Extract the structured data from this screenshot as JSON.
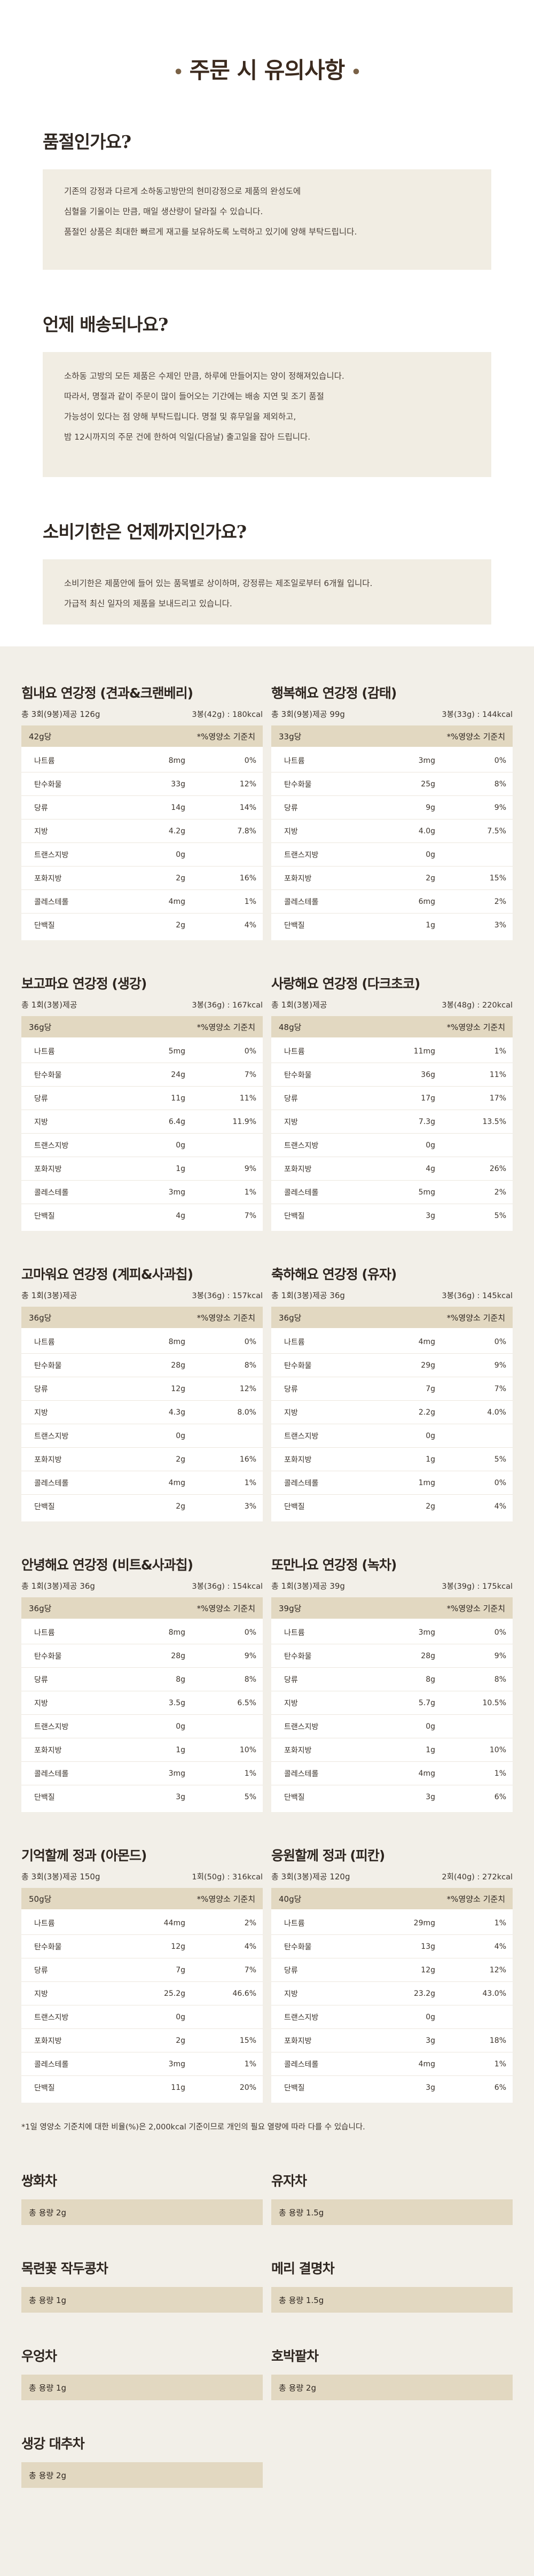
{
  "header": {
    "title": "주문 시 유의사항",
    "dot_left": "•",
    "dot_right": "•"
  },
  "faqs": [
    {
      "question": "품절인가요?",
      "lines": [
        "기존의 강정과 다르게 소하동고방만의 현미강정으로 제품의 완성도에",
        "심혈을 기울이는 만큼, 매일 생산량이 달라질 수 있습니다.",
        "품절인 상품은 최대한 빠르게 재고를 보유하도록 노력하고 있기에 양해 부탁드립니다."
      ]
    },
    {
      "question": "언제 배송되나요?",
      "lines": [
        "소하동 고방의 모든 제품은 수제인 만큼, 하루에 만들어지는 양이 정해져있습니다.",
        "따라서, 명절과 같이 주문이 많이 들어오는 기간에는 배송 지연 및 조기 품절",
        "가능성이 있다는 점 양해 부탁드립니다. 명절 및 휴무일을 제외하고,",
        "밤 12시까지의 주문 건에 한하여 익일(다음날) 출고일을 잡아 드립니다."
      ]
    },
    {
      "question": "소비기한은 언제까지인가요?",
      "lines": [
        "소비기한은 제품안에 들어 있는 품목별로 상이하며, 강정류는 제조일로부터 6개월 입니다.",
        "가급적 최신 일자의 제품을 보내드리고 있습니다."
      ]
    }
  ],
  "nutrition": {
    "unit_header": "*%영양소 기준치",
    "cards": [
      {
        "name": "힘내요 연강정 (견과&크랜베리)",
        "meta_left": "총 3회(9봉)제공 126g",
        "meta_right": "3봉(42g) : 180kcal",
        "per": "42g당",
        "rows": [
          {
            "n": "나트륨",
            "a": "8mg",
            "p": "0%"
          },
          {
            "n": "탄수화물",
            "a": "33g",
            "p": "12%"
          },
          {
            "n": "당류",
            "a": "14g",
            "p": "14%"
          },
          {
            "n": "지방",
            "a": "4.2g",
            "p": "7.8%"
          },
          {
            "n": "트랜스지방",
            "a": "0g",
            "p": ""
          },
          {
            "n": "포화지방",
            "a": "2g",
            "p": "16%"
          },
          {
            "n": "콜레스테롤",
            "a": "4mg",
            "p": "1%"
          },
          {
            "n": "단백질",
            "a": "2g",
            "p": "4%"
          }
        ]
      },
      {
        "name": "행복해요 연강정 (감태)",
        "meta_left": "총 3회(9봉)제공 99g",
        "meta_right": "3봉(33g) : 144kcal",
        "per": "33g당",
        "rows": [
          {
            "n": "나트륨",
            "a": "3mg",
            "p": "0%"
          },
          {
            "n": "탄수화물",
            "a": "25g",
            "p": "8%"
          },
          {
            "n": "당류",
            "a": "9g",
            "p": "9%"
          },
          {
            "n": "지방",
            "a": "4.0g",
            "p": "7.5%"
          },
          {
            "n": "트랜스지방",
            "a": "0g",
            "p": ""
          },
          {
            "n": "포화지방",
            "a": "2g",
            "p": "15%"
          },
          {
            "n": "콜레스테롤",
            "a": "6mg",
            "p": "2%"
          },
          {
            "n": "단백질",
            "a": "1g",
            "p": "3%"
          }
        ]
      },
      {
        "name": "보고파요 연강정 (생강)",
        "meta_left": "총 1회(3봉)제공",
        "meta_right": "3봉(36g) : 167kcal",
        "per": "36g당",
        "rows": [
          {
            "n": "나트륨",
            "a": "5mg",
            "p": "0%"
          },
          {
            "n": "탄수화물",
            "a": "24g",
            "p": "7%"
          },
          {
            "n": "당류",
            "a": "11g",
            "p": "11%"
          },
          {
            "n": "지방",
            "a": "6.4g",
            "p": "11.9%"
          },
          {
            "n": "트랜스지방",
            "a": "0g",
            "p": ""
          },
          {
            "n": "포화지방",
            "a": "1g",
            "p": "9%"
          },
          {
            "n": "콜레스테롤",
            "a": "3mg",
            "p": "1%"
          },
          {
            "n": "단백질",
            "a": "4g",
            "p": "7%"
          }
        ]
      },
      {
        "name": "사랑해요 연강정 (다크초코)",
        "meta_left": "총 1회(3봉)제공",
        "meta_right": "3봉(48g) : 220kcal",
        "per": "48g당",
        "rows": [
          {
            "n": "나트륨",
            "a": "11mg",
            "p": "1%"
          },
          {
            "n": "탄수화물",
            "a": "36g",
            "p": "11%"
          },
          {
            "n": "당류",
            "a": "17g",
            "p": "17%"
          },
          {
            "n": "지방",
            "a": "7.3g",
            "p": "13.5%"
          },
          {
            "n": "트랜스지방",
            "a": "0g",
            "p": ""
          },
          {
            "n": "포화지방",
            "a": "4g",
            "p": "26%"
          },
          {
            "n": "콜레스테롤",
            "a": "5mg",
            "p": "2%"
          },
          {
            "n": "단백질",
            "a": "3g",
            "p": "5%"
          }
        ]
      },
      {
        "name": "고마워요 연강정 (계피&사과칩)",
        "meta_left": "총 1회(3봉)제공",
        "meta_right": "3봉(36g) : 157kcal",
        "per": "36g당",
        "rows": [
          {
            "n": "나트륨",
            "a": "8mg",
            "p": "0%"
          },
          {
            "n": "탄수화물",
            "a": "28g",
            "p": "8%"
          },
          {
            "n": "당류",
            "a": "12g",
            "p": "12%"
          },
          {
            "n": "지방",
            "a": "4.3g",
            "p": "8.0%"
          },
          {
            "n": "트랜스지방",
            "a": "0g",
            "p": ""
          },
          {
            "n": "포화지방",
            "a": "2g",
            "p": "16%"
          },
          {
            "n": "콜레스테롤",
            "a": "4mg",
            "p": "1%"
          },
          {
            "n": "단백질",
            "a": "2g",
            "p": "3%"
          }
        ]
      },
      {
        "name": "축하해요 연강정 (유자)",
        "meta_left": "총 1회(3봉)제공 36g",
        "meta_right": "3봉(36g) : 145kcal",
        "per": "36g당",
        "rows": [
          {
            "n": "나트륨",
            "a": "4mg",
            "p": "0%"
          },
          {
            "n": "탄수화물",
            "a": "29g",
            "p": "9%"
          },
          {
            "n": "당류",
            "a": "7g",
            "p": "7%"
          },
          {
            "n": "지방",
            "a": "2.2g",
            "p": "4.0%"
          },
          {
            "n": "트랜스지방",
            "a": "0g",
            "p": ""
          },
          {
            "n": "포화지방",
            "a": "1g",
            "p": "5%"
          },
          {
            "n": "콜레스테롤",
            "a": "1mg",
            "p": "0%"
          },
          {
            "n": "단백질",
            "a": "2g",
            "p": "4%"
          }
        ]
      },
      {
        "name": "안녕해요 연강정 (비트&사과칩)",
        "meta_left": "총 1회(3봉)제공 36g",
        "meta_right": "3봉(36g) : 154kcal",
        "per": "36g당",
        "rows": [
          {
            "n": "나트륨",
            "a": "8mg",
            "p": "0%"
          },
          {
            "n": "탄수화물",
            "a": "28g",
            "p": "9%"
          },
          {
            "n": "당류",
            "a": "8g",
            "p": "8%"
          },
          {
            "n": "지방",
            "a": "3.5g",
            "p": "6.5%"
          },
          {
            "n": "트랜스지방",
            "a": "0g",
            "p": ""
          },
          {
            "n": "포화지방",
            "a": "1g",
            "p": "10%"
          },
          {
            "n": "콜레스테롤",
            "a": "3mg",
            "p": "1%"
          },
          {
            "n": "단백질",
            "a": "3g",
            "p": "5%"
          }
        ]
      },
      {
        "name": "또만나요 연강정 (녹차)",
        "meta_left": "총 1회(3봉)제공 39g",
        "meta_right": "3봉(39g) : 175kcal",
        "per": "39g당",
        "rows": [
          {
            "n": "나트륨",
            "a": "3mg",
            "p": "0%"
          },
          {
            "n": "탄수화물",
            "a": "28g",
            "p": "9%"
          },
          {
            "n": "당류",
            "a": "8g",
            "p": "8%"
          },
          {
            "n": "지방",
            "a": "5.7g",
            "p": "10.5%"
          },
          {
            "n": "트랜스지방",
            "a": "0g",
            "p": ""
          },
          {
            "n": "포화지방",
            "a": "1g",
            "p": "10%"
          },
          {
            "n": "콜레스테롤",
            "a": "4mg",
            "p": "1%"
          },
          {
            "n": "단백질",
            "a": "3g",
            "p": "6%"
          }
        ]
      },
      {
        "name": "기억할께 정과 (아몬드)",
        "meta_left": "총 3회(3봉)제공 150g",
        "meta_right": "1회(50g) : 316kcal",
        "per": "50g당",
        "rows": [
          {
            "n": "나트륨",
            "a": "44mg",
            "p": "2%"
          },
          {
            "n": "탄수화물",
            "a": "12g",
            "p": "4%"
          },
          {
            "n": "당류",
            "a": "7g",
            "p": "7%"
          },
          {
            "n": "지방",
            "a": "25.2g",
            "p": "46.6%"
          },
          {
            "n": "트랜스지방",
            "a": "0g",
            "p": ""
          },
          {
            "n": "포화지방",
            "a": "2g",
            "p": "15%"
          },
          {
            "n": "콜레스테롤",
            "a": "3mg",
            "p": "1%"
          },
          {
            "n": "단백질",
            "a": "11g",
            "p": "20%"
          }
        ]
      },
      {
        "name": "응원할께 정과 (피칸)",
        "meta_left": "총 3회(3봉)제공 120g",
        "meta_right": "2회(40g) : 272kcal",
        "per": "40g당",
        "rows": [
          {
            "n": "나트륨",
            "a": "29mg",
            "p": "1%"
          },
          {
            "n": "탄수화물",
            "a": "13g",
            "p": "4%"
          },
          {
            "n": "당류",
            "a": "12g",
            "p": "12%"
          },
          {
            "n": "지방",
            "a": "23.2g",
            "p": "43.0%"
          },
          {
            "n": "트랜스지방",
            "a": "0g",
            "p": ""
          },
          {
            "n": "포화지방",
            "a": "3g",
            "p": "18%"
          },
          {
            "n": "콜레스테롤",
            "a": "4mg",
            "p": "1%"
          },
          {
            "n": "단백질",
            "a": "3g",
            "p": "6%"
          }
        ]
      }
    ],
    "footnote": "*1일 영양소 기준치에 대한 비율(%)은 2,000kcal 기준이므로 개인의 필요 열량에 따라 다를 수 있습니다."
  },
  "teas": [
    {
      "name": "쌍화차",
      "weight": "총 용량 2g"
    },
    {
      "name": "유자차",
      "weight": "총 용량 1.5g"
    },
    {
      "name": "목련꽃 작두콩차",
      "weight": "총 용량 1g"
    },
    {
      "name": "메리 결명차",
      "weight": "총 용량 1.5g"
    },
    {
      "name": "우엉차",
      "weight": "총 용량 1g"
    },
    {
      "name": "호박팥차",
      "weight": "총 용량 2g"
    },
    {
      "name": "생강 대추차",
      "weight": "총 용량 2g"
    }
  ]
}
